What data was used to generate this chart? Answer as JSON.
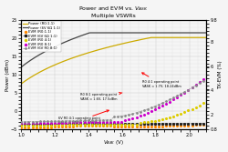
{
  "title1": "Power and EVM vs. V",
  "title1_sub": "ASK",
  "title2": "Multiple VSWRs",
  "xlabel": "V",
  "xlabel_sub": "ASK",
  "xlabel_unit": " (V)",
  "ylabel_left": "Power (dBm)",
  "ylabel_right": "TX-EVM (%)",
  "xlim": [
    1.0,
    2.1
  ],
  "ylim_left": [
    -5,
    25
  ],
  "ylim_right": [
    0.8,
    9.8
  ],
  "xticks": [
    1.0,
    1.2,
    1.4,
    1.6,
    1.8,
    2.0
  ],
  "yticks_left": [
    -5,
    0,
    5,
    10,
    15,
    20,
    25
  ],
  "yticks_right": [
    0.8,
    2,
    4,
    6,
    8,
    9.8
  ],
  "background_color": "#f5f5f5",
  "grid_color": "#bbbbbb",
  "power_r0_color": "#ccaa00",
  "power_6v_color": "#444444",
  "evm_r0_11_color": "#ff8800",
  "evm_6v_11_color": "#222222",
  "evm_r0_41_color": "#ddcc00",
  "evm_r0_81_color": "#cc00cc",
  "evm_6v_r0_81_color": "#888888"
}
